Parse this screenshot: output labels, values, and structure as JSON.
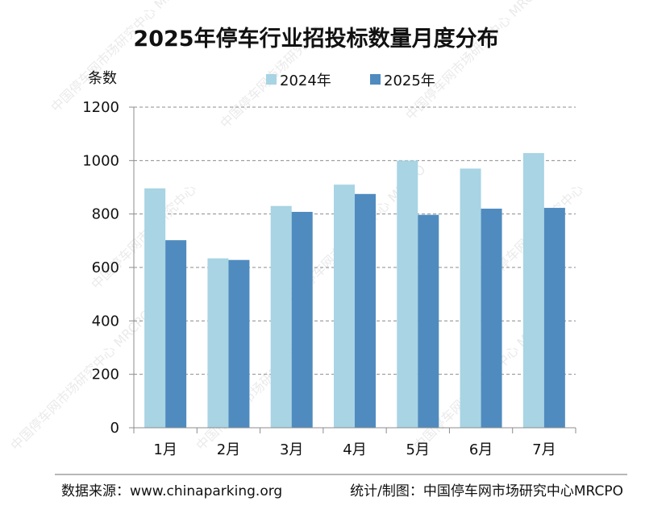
{
  "watermark": "中国停车网市场研究中心",
  "watermark_alt": "MRCPO",
  "chart_data": {
    "type": "bar",
    "title": "2025年停车行业招投标数量月度分布",
    "ylabel": "条数",
    "xlabel": "",
    "categories": [
      "1月",
      "2月",
      "3月",
      "4月",
      "5月",
      "6月",
      "7月"
    ],
    "series": [
      {
        "name": "2024年",
        "color": "#a8d4e4",
        "values": [
          896,
          634,
          830,
          910,
          1000,
          970,
          1028
        ]
      },
      {
        "name": "2025年",
        "color": "#4f8bbf",
        "values": [
          702,
          628,
          808,
          875,
          797,
          820,
          823
        ]
      }
    ],
    "ylim": [
      0,
      1200
    ],
    "yticks": [
      0,
      200,
      400,
      600,
      800,
      1000,
      1200
    ],
    "grid": true,
    "legend": "top-center"
  },
  "footer": {
    "source": "数据来源：www.chinaparking.org",
    "credit": "统计/制图：中国停车网市场研究中心MRCPO"
  }
}
